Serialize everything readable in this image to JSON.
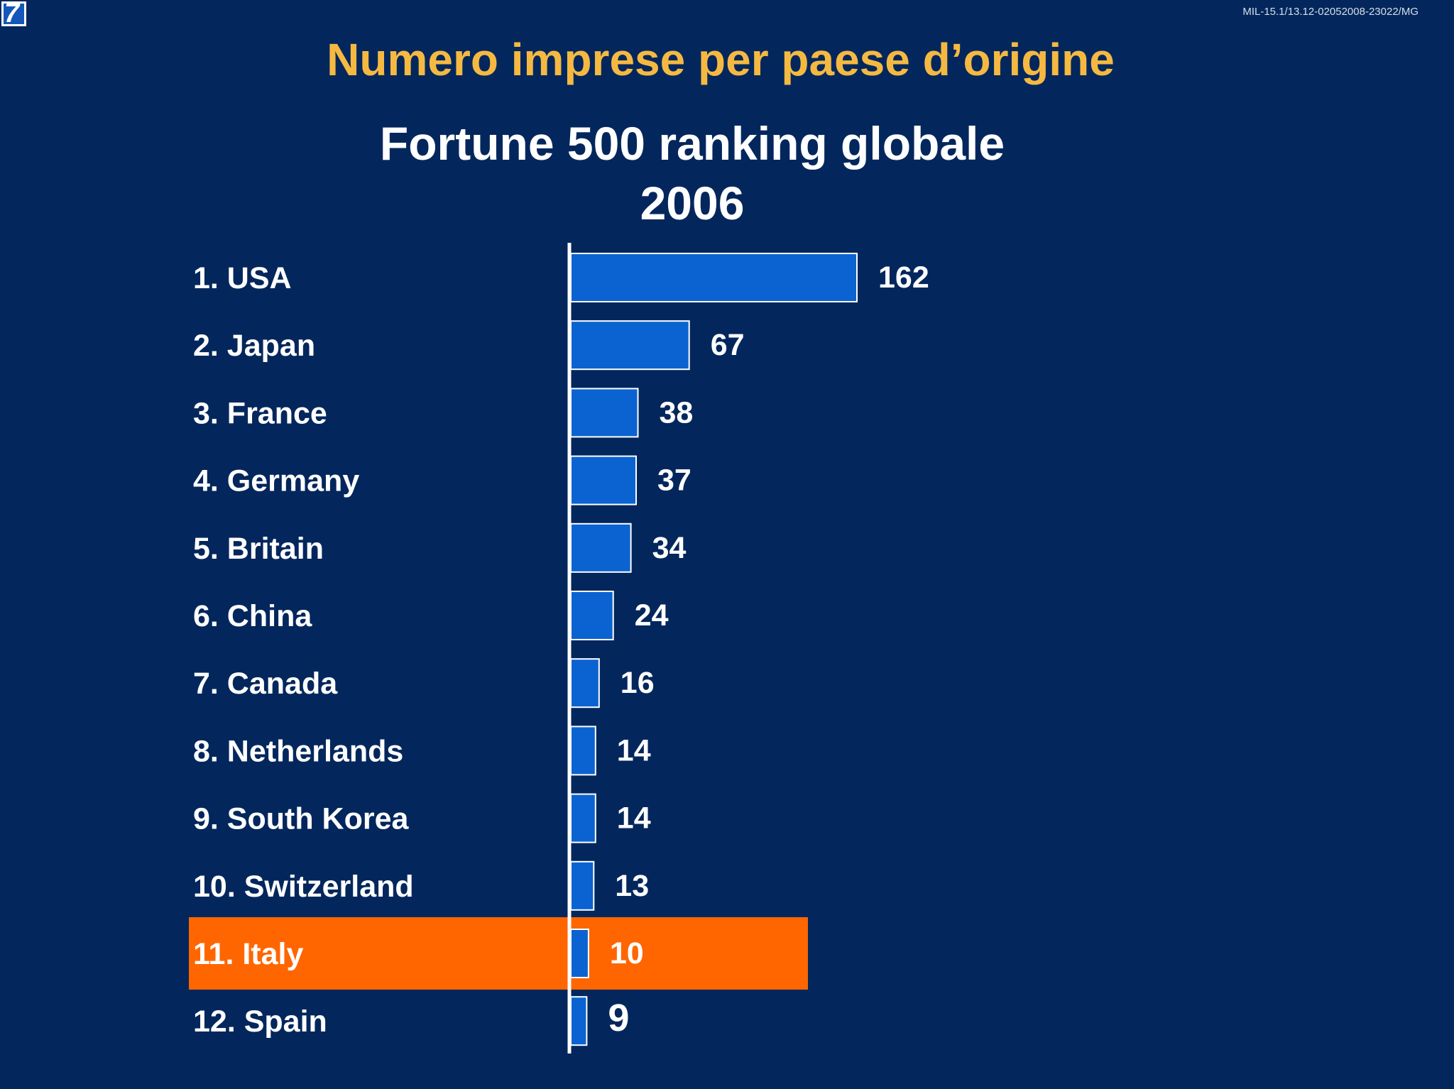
{
  "slide": {
    "logo_text": "7",
    "doc_code": "MIL-15.1/13.12-02052008-23022/MG",
    "title": "Numero imprese per paese d’origine",
    "colors": {
      "background": "#03275c",
      "title": "#f5b942",
      "bar": "#0a63d1",
      "bar_outline": "#ffffff",
      "highlight": "#ff6600"
    }
  },
  "chart_data": {
    "type": "bar",
    "orientation": "horizontal",
    "title": "Fortune 500 ranking globale",
    "subtitle": "2006",
    "categories": [
      "1. USA",
      "2. Japan",
      "3. France",
      "4. Germany",
      "5. Britain",
      "6. China",
      "7. Canada",
      "8. Netherlands",
      "9. South Korea",
      "10. Switzerland",
      "11. Italy",
      "12. Spain"
    ],
    "values": [
      162,
      67,
      38,
      37,
      34,
      24,
      16,
      14,
      14,
      13,
      10,
      9
    ],
    "value_labels": [
      "162",
      "67",
      "38",
      "37",
      "34",
      "24",
      "16",
      "14",
      "14",
      "13",
      "10",
      "9"
    ],
    "highlighted_category": "11. Italy",
    "xlim": [
      0,
      162
    ],
    "grid": false,
    "legend": "none"
  }
}
